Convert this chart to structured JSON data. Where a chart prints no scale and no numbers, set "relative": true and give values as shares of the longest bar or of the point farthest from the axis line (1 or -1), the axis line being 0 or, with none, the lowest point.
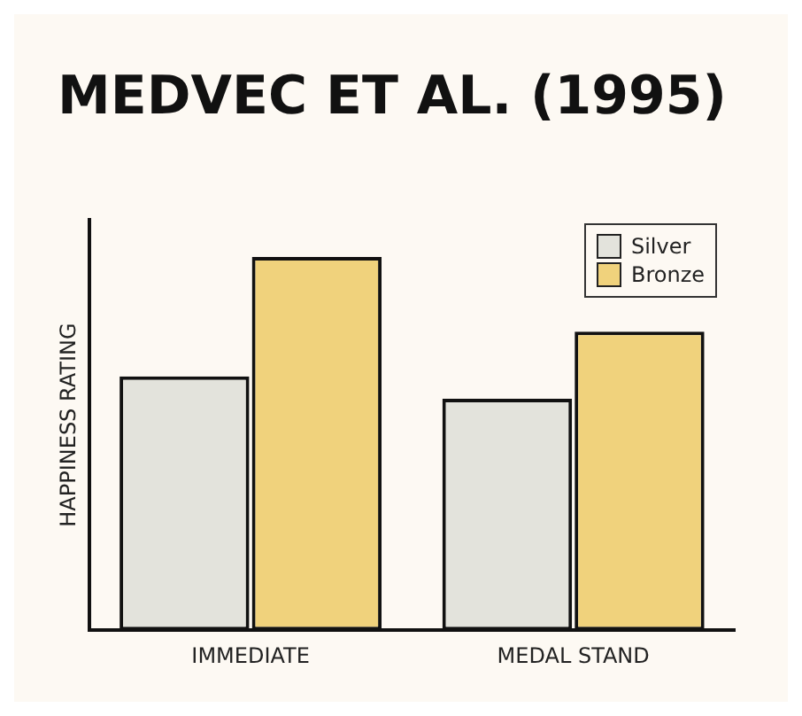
{
  "chart_data": {
    "type": "bar",
    "title": "MEDVEC ET AL. (1995)",
    "ylabel": "HAPPINESS RATING",
    "categories": [
      "IMMEDIATE",
      "MEDAL STAND"
    ],
    "relative": true,
    "series": [
      {
        "name": "Silver",
        "color": "#e3e3dc",
        "values": [
          0.68,
          0.62
        ]
      },
      {
        "name": "Bronze",
        "color": "#f0d27c",
        "values": [
          1,
          0.8
        ]
      }
    ],
    "legend": "top right",
    "grid": false
  }
}
